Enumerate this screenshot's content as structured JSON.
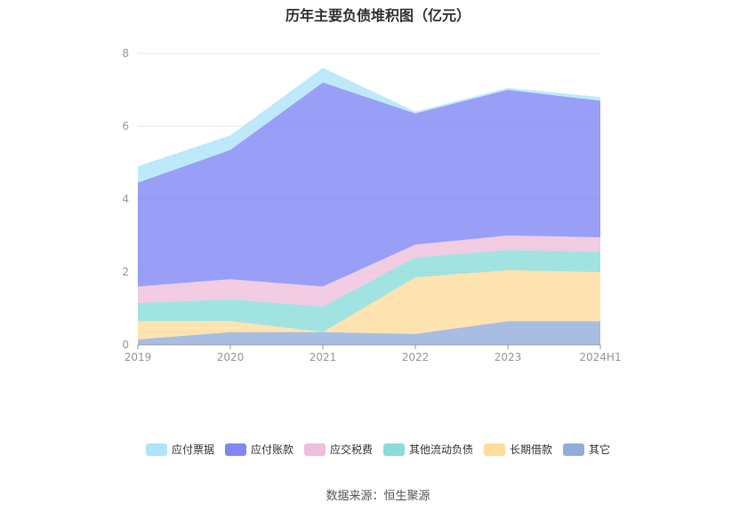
{
  "chart_data": {
    "type": "area",
    "stacked": true,
    "title": "历年主要负债堆积图（亿元）",
    "categories": [
      "2019",
      "2020",
      "2021",
      "2022",
      "2023",
      "2024H1"
    ],
    "ylim": [
      0,
      8
    ],
    "yticks": [
      "0",
      "2",
      "4",
      "6",
      "8"
    ],
    "grid": true,
    "legend_position": "bottom",
    "series": [
      {
        "name": "其它",
        "color": "#93ADDB",
        "values": [
          0.15,
          0.35,
          0.35,
          0.3,
          0.65,
          0.65
        ]
      },
      {
        "name": "长期借款",
        "color": "#FFDC9C",
        "values": [
          0.5,
          0.3,
          0.0,
          1.55,
          1.4,
          1.35
        ]
      },
      {
        "name": "其他流动负债",
        "color": "#8ADCDA",
        "values": [
          0.5,
          0.6,
          0.7,
          0.55,
          0.55,
          0.55
        ]
      },
      {
        "name": "应交税费",
        "color": "#EDBFDB",
        "values": [
          0.45,
          0.55,
          0.55,
          0.35,
          0.4,
          0.4
        ]
      },
      {
        "name": "应付账款",
        "color": "#8087F5",
        "values": [
          2.85,
          3.55,
          5.6,
          3.6,
          4.0,
          3.75
        ]
      },
      {
        "name": "应付票据",
        "color": "#AEE3FA",
        "values": [
          0.45,
          0.4,
          0.4,
          0.05,
          0.05,
          0.1
        ]
      }
    ]
  },
  "legend": [
    {
      "label": "应付票据",
      "color": "#AEE3FA"
    },
    {
      "label": "应付账款",
      "color": "#8087F5"
    },
    {
      "label": "应交税费",
      "color": "#EDBFDB"
    },
    {
      "label": "其他流动负债",
      "color": "#8ADCDA"
    },
    {
      "label": "长期借款",
      "color": "#FFDC9C"
    },
    {
      "label": "其它",
      "color": "#93ADDB"
    }
  ],
  "source": "数据来源：恒生聚源"
}
